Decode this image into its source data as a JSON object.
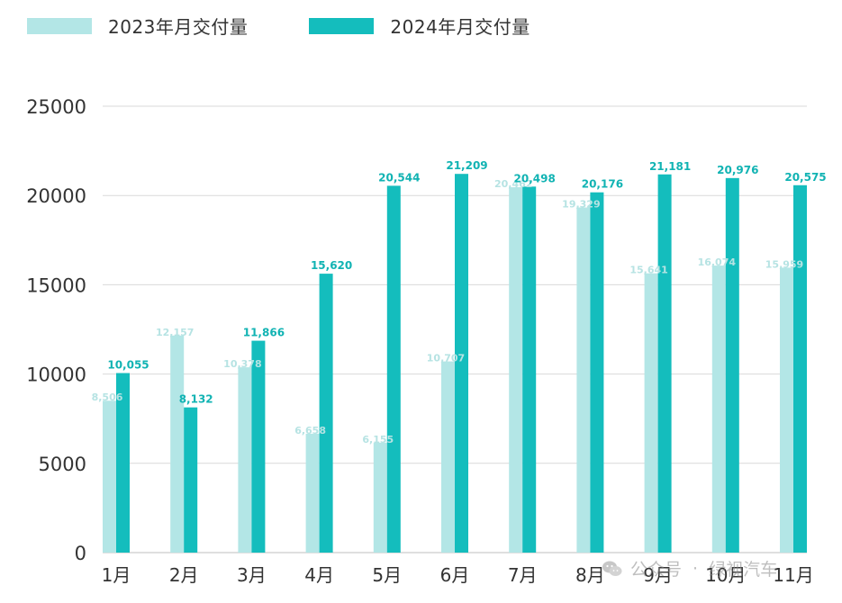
{
  "legend": {
    "series_2023": "2023年月交付量",
    "series_2024": "2024年月交付量"
  },
  "colors": {
    "series_2023": "#b3e6e6",
    "series_2024": "#14bdbd",
    "label_2023": "#b6e3e3",
    "label_2024": "#11b3b3",
    "grid": "#d9d9d9",
    "axis_text": "#333333"
  },
  "watermark": {
    "icon": "wechat-icon",
    "account_label": "公众号",
    "separator": "·",
    "account_name": "绿视汽车"
  },
  "chart_data": {
    "type": "bar",
    "categories": [
      "1月",
      "2月",
      "3月",
      "4月",
      "5月",
      "6月",
      "7月",
      "8月",
      "9月",
      "10月",
      "11月"
    ],
    "series": [
      {
        "name": "2023年月交付量",
        "values": [
          8506,
          12157,
          10378,
          6658,
          6155,
          10707,
          20462,
          19329,
          15641,
          16074,
          15959
        ],
        "labels": [
          "8,506",
          "12,157",
          "10,378",
          "6,658",
          "6,155",
          "10,707",
          "20,462",
          "19,329",
          "15,641",
          "16,074",
          "15,959"
        ]
      },
      {
        "name": "2024年月交付量",
        "values": [
          10055,
          8132,
          11866,
          15620,
          20544,
          21209,
          20498,
          20176,
          21181,
          20976,
          20575
        ],
        "labels": [
          "10,055",
          "8,132",
          "11,866",
          "15,620",
          "20,544",
          "21,209",
          "20,498",
          "20,176",
          "21,181",
          "20,976",
          "20,575"
        ]
      }
    ],
    "ylim": [
      0,
      25000
    ],
    "yticks": [
      "0",
      "5000",
      "10000",
      "15000",
      "20000",
      "25000"
    ],
    "grid": true,
    "legend_position": "top-left"
  }
}
